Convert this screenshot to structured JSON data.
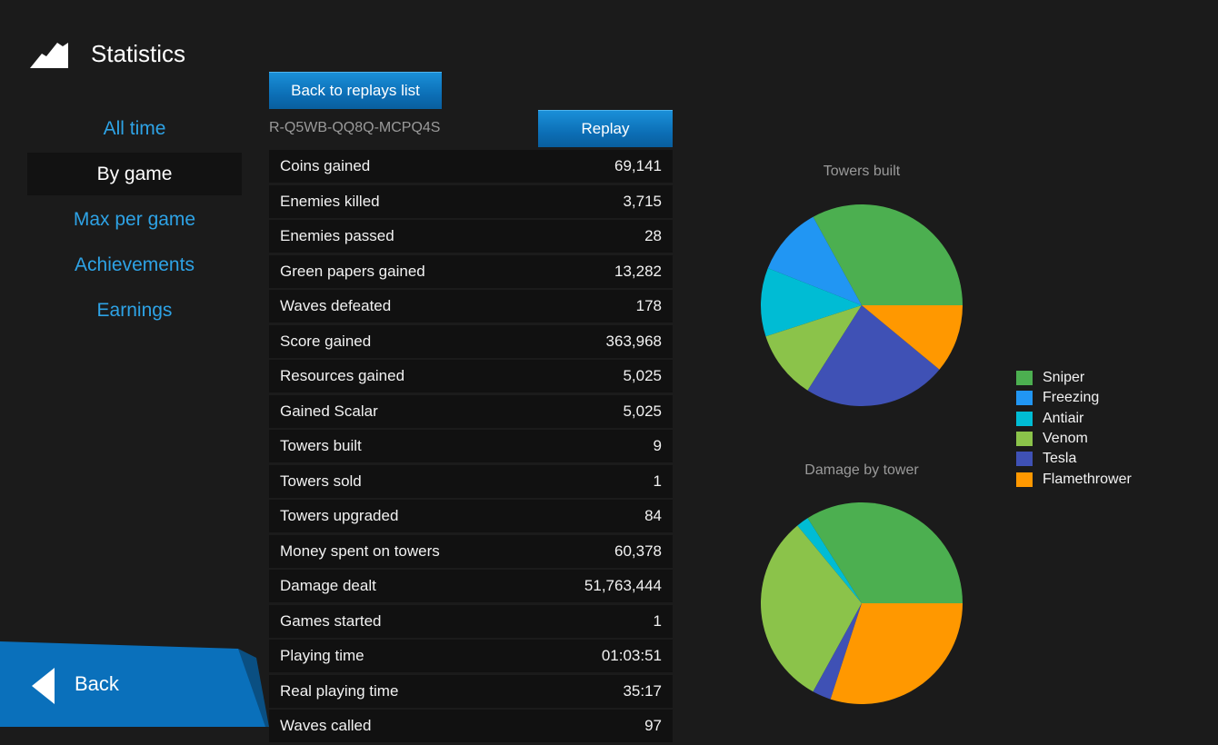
{
  "header": {
    "title": "Statistics",
    "logo_icon": "mountain-icon"
  },
  "nav": {
    "items": [
      {
        "label": "All time",
        "active": false
      },
      {
        "label": "By game",
        "active": true
      },
      {
        "label": "Max per game",
        "active": false
      },
      {
        "label": "Achievements",
        "active": false
      },
      {
        "label": "Earnings",
        "active": false
      }
    ]
  },
  "toolbar": {
    "back_to_list_label": "Back to replays list",
    "replay_id": "R-Q5WB-QQ8Q-MCPQ4S",
    "replay_label": "Replay"
  },
  "stats": [
    {
      "label": "Coins gained",
      "value": "69,141"
    },
    {
      "label": "Enemies killed",
      "value": "3,715"
    },
    {
      "label": "Enemies passed",
      "value": "28"
    },
    {
      "label": "Green papers gained",
      "value": "13,282"
    },
    {
      "label": "Waves defeated",
      "value": "178"
    },
    {
      "label": "Score gained",
      "value": "363,968"
    },
    {
      "label": "Resources gained",
      "value": "5,025"
    },
    {
      "label": "Gained Scalar",
      "value": "5,025"
    },
    {
      "label": "Towers built",
      "value": "9"
    },
    {
      "label": "Towers sold",
      "value": "1"
    },
    {
      "label": "Towers upgraded",
      "value": "84"
    },
    {
      "label": "Money spent on towers",
      "value": "60,378"
    },
    {
      "label": "Damage dealt",
      "value": "51,763,444"
    },
    {
      "label": "Games started",
      "value": "1"
    },
    {
      "label": "Playing time",
      "value": "01:03:51"
    },
    {
      "label": "Real playing time",
      "value": "35:17"
    },
    {
      "label": "Waves called",
      "value": "97"
    }
  ],
  "chart_data": [
    {
      "type": "pie",
      "title": "Towers built",
      "categories": [
        "Sniper",
        "Freezing",
        "Antiair",
        "Venom",
        "Tesla",
        "Flamethrower"
      ],
      "values": [
        33,
        11,
        11,
        11,
        23,
        11
      ]
    },
    {
      "type": "pie",
      "title": "Damage by tower",
      "categories": [
        "Sniper",
        "Freezing",
        "Antiair",
        "Venom",
        "Tesla",
        "Flamethrower"
      ],
      "values": [
        34,
        0,
        2,
        31,
        3,
        30
      ]
    }
  ],
  "legend": {
    "placement": "right",
    "items": [
      {
        "label": "Sniper",
        "color": "#4caf50"
      },
      {
        "label": "Freezing",
        "color": "#2196f3"
      },
      {
        "label": "Antiair",
        "color": "#00bcd4"
      },
      {
        "label": "Venom",
        "color": "#8bc34a"
      },
      {
        "label": "Tesla",
        "color": "#3f51b5"
      },
      {
        "label": "Flamethrower",
        "color": "#ff9800"
      }
    ]
  },
  "footer": {
    "back_label": "Back",
    "back_icon": "triangle-left-icon"
  }
}
